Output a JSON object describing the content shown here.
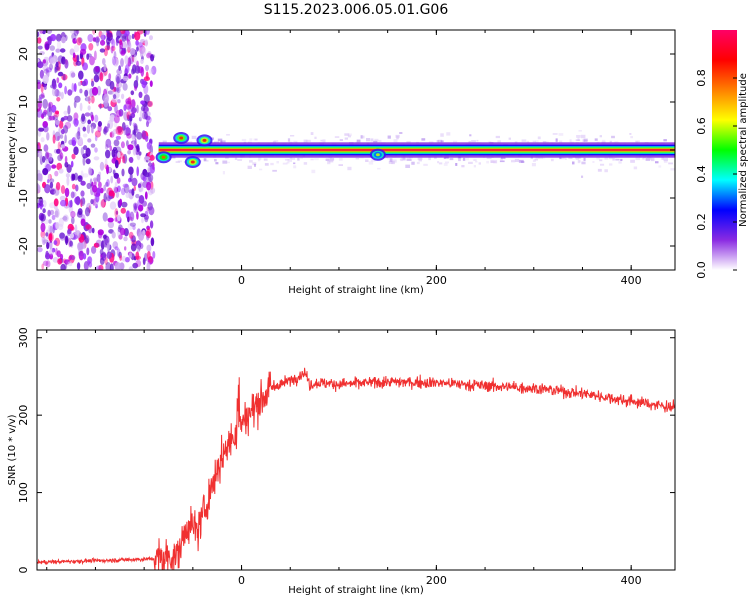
{
  "figure": {
    "title": "S115.2023.006.05.01.G06"
  },
  "colorbar": {
    "label": "Normalized spectral amplitude",
    "ticks": [
      0.0,
      0.2,
      0.4,
      0.6,
      0.8
    ],
    "tick_labels": [
      "0.0",
      "0.2",
      "0.4",
      "0.6",
      "0.8"
    ],
    "range": [
      0,
      1
    ],
    "colors": [
      "#ffffff",
      "#8a2be2",
      "#0000ff",
      "#00ffff",
      "#00ff00",
      "#ffff00",
      "#ff8000",
      "#ff0000",
      "#ff0066"
    ]
  },
  "chart_data": [
    {
      "type": "heatmap",
      "title": "",
      "xlabel": "Height of straight line (km)",
      "ylabel": "Frequency (Hz)",
      "xlim": [
        -210,
        445
      ],
      "ylim": [
        -25,
        25
      ],
      "xticks": [
        0,
        200,
        400
      ],
      "xtick_labels": [
        "0",
        "200",
        "400"
      ],
      "yticks": [
        -20,
        -10,
        0,
        10,
        20
      ],
      "ytick_labels": [
        "-20",
        "-10",
        "0",
        "10",
        "20"
      ],
      "grid": false,
      "colorbar": true,
      "noise_region_x": [
        -210,
        -90
      ],
      "carrier_ridge": {
        "frequency_hz": 0,
        "start_x": -85,
        "end_x": 445,
        "peak_amplitude": 1.0
      },
      "ridge_features": [
        {
          "x": -80,
          "frequency": -1.5,
          "amplitude": 0.5
        },
        {
          "x": -62,
          "frequency": 2.5,
          "amplitude": 0.55
        },
        {
          "x": -50,
          "frequency": -2.5,
          "amplitude": 0.6
        },
        {
          "x": -38,
          "frequency": 2.0,
          "amplitude": 0.6
        },
        {
          "x": 140,
          "frequency": -1.0,
          "amplitude": 0.3
        }
      ]
    },
    {
      "type": "line",
      "title": "",
      "xlabel": "Height of straight line (km)",
      "ylabel": "SNR (10 * v/v)",
      "xlim": [
        -210,
        445
      ],
      "ylim": [
        0,
        310
      ],
      "xticks": [
        0,
        200,
        400
      ],
      "xtick_labels": [
        "0",
        "200",
        "400"
      ],
      "yticks": [
        0,
        100,
        200,
        300
      ],
      "ytick_labels": [
        "0",
        "100",
        "200",
        "300"
      ],
      "grid": false,
      "color": "#f03030",
      "series": [
        {
          "x": [
            -210,
            -150,
            -100,
            -80,
            -65,
            -55,
            -45,
            -35,
            -25,
            -15,
            0,
            10,
            20,
            30,
            50,
            65,
            70,
            80,
            100,
            150,
            200,
            250,
            300,
            350,
            400,
            445
          ],
          "values": [
            10,
            12,
            14,
            15,
            20,
            60,
            50,
            90,
            130,
            160,
            190,
            205,
            220,
            235,
            245,
            255,
            240,
            242,
            240,
            243,
            242,
            238,
            235,
            228,
            218,
            210
          ]
        }
      ]
    }
  ]
}
